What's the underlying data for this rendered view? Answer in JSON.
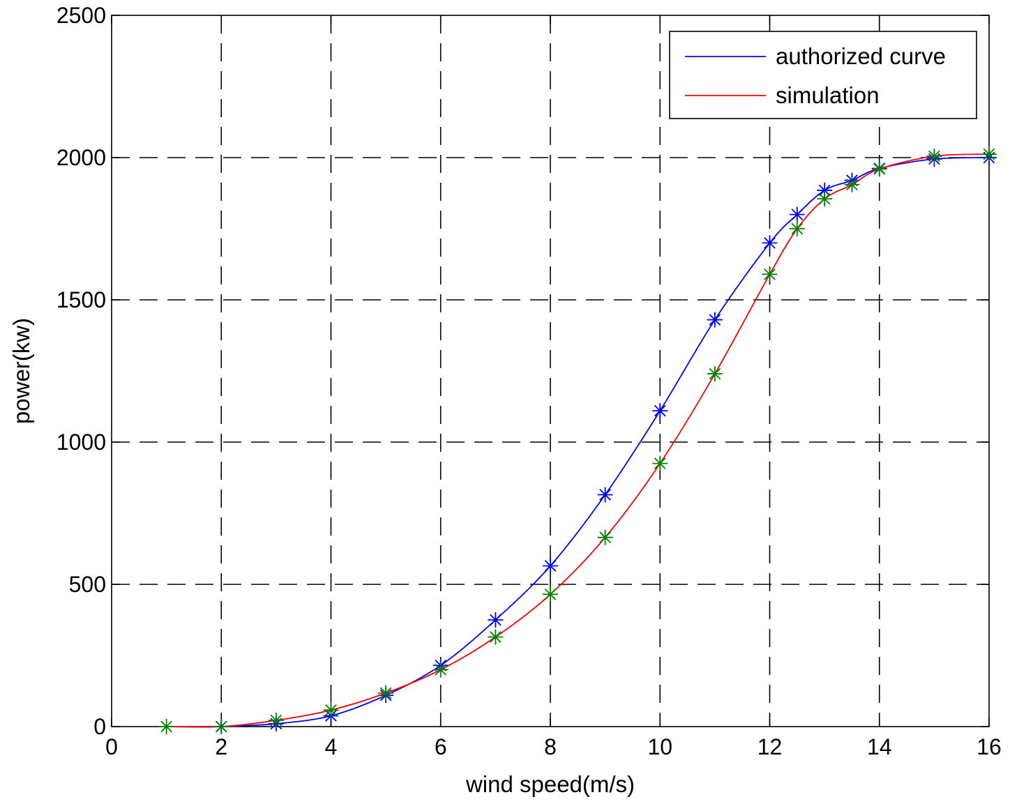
{
  "chart_data": {
    "type": "line",
    "title": "",
    "xlabel": "wind speed(m/s)",
    "ylabel": "power(kw)",
    "xlim": [
      0,
      16
    ],
    "ylim": [
      0,
      2500
    ],
    "x_ticks": [
      0,
      2,
      4,
      6,
      8,
      10,
      12,
      14,
      16
    ],
    "y_ticks": [
      0,
      500,
      1000,
      1500,
      2000,
      2500
    ],
    "grid": true,
    "legend_position": "top-right",
    "series": [
      {
        "name": "authorized curve",
        "line_color": "#0000ff",
        "marker_color": "#0000ff",
        "marker": "asterisk",
        "x": [
          2,
          3,
          4,
          5,
          6,
          7,
          8,
          9,
          10,
          11,
          12,
          12.5,
          13,
          13.5,
          14,
          15,
          16
        ],
        "values": [
          0,
          10,
          38,
          110,
          215,
          375,
          565,
          815,
          1110,
          1430,
          1700,
          1800,
          1885,
          1920,
          1962,
          1995,
          2000
        ]
      },
      {
        "name": "simulation",
        "line_color": "#ff0000",
        "marker_color": "#008000",
        "marker": "asterisk",
        "x": [
          1,
          2,
          3,
          4,
          5,
          6,
          7,
          8,
          9,
          10,
          11,
          12,
          12.5,
          13,
          13.5,
          14,
          15,
          16
        ],
        "values": [
          0,
          0,
          22,
          58,
          118,
          200,
          315,
          465,
          665,
          925,
          1240,
          1590,
          1750,
          1855,
          1905,
          1960,
          2005,
          2012
        ]
      }
    ]
  }
}
